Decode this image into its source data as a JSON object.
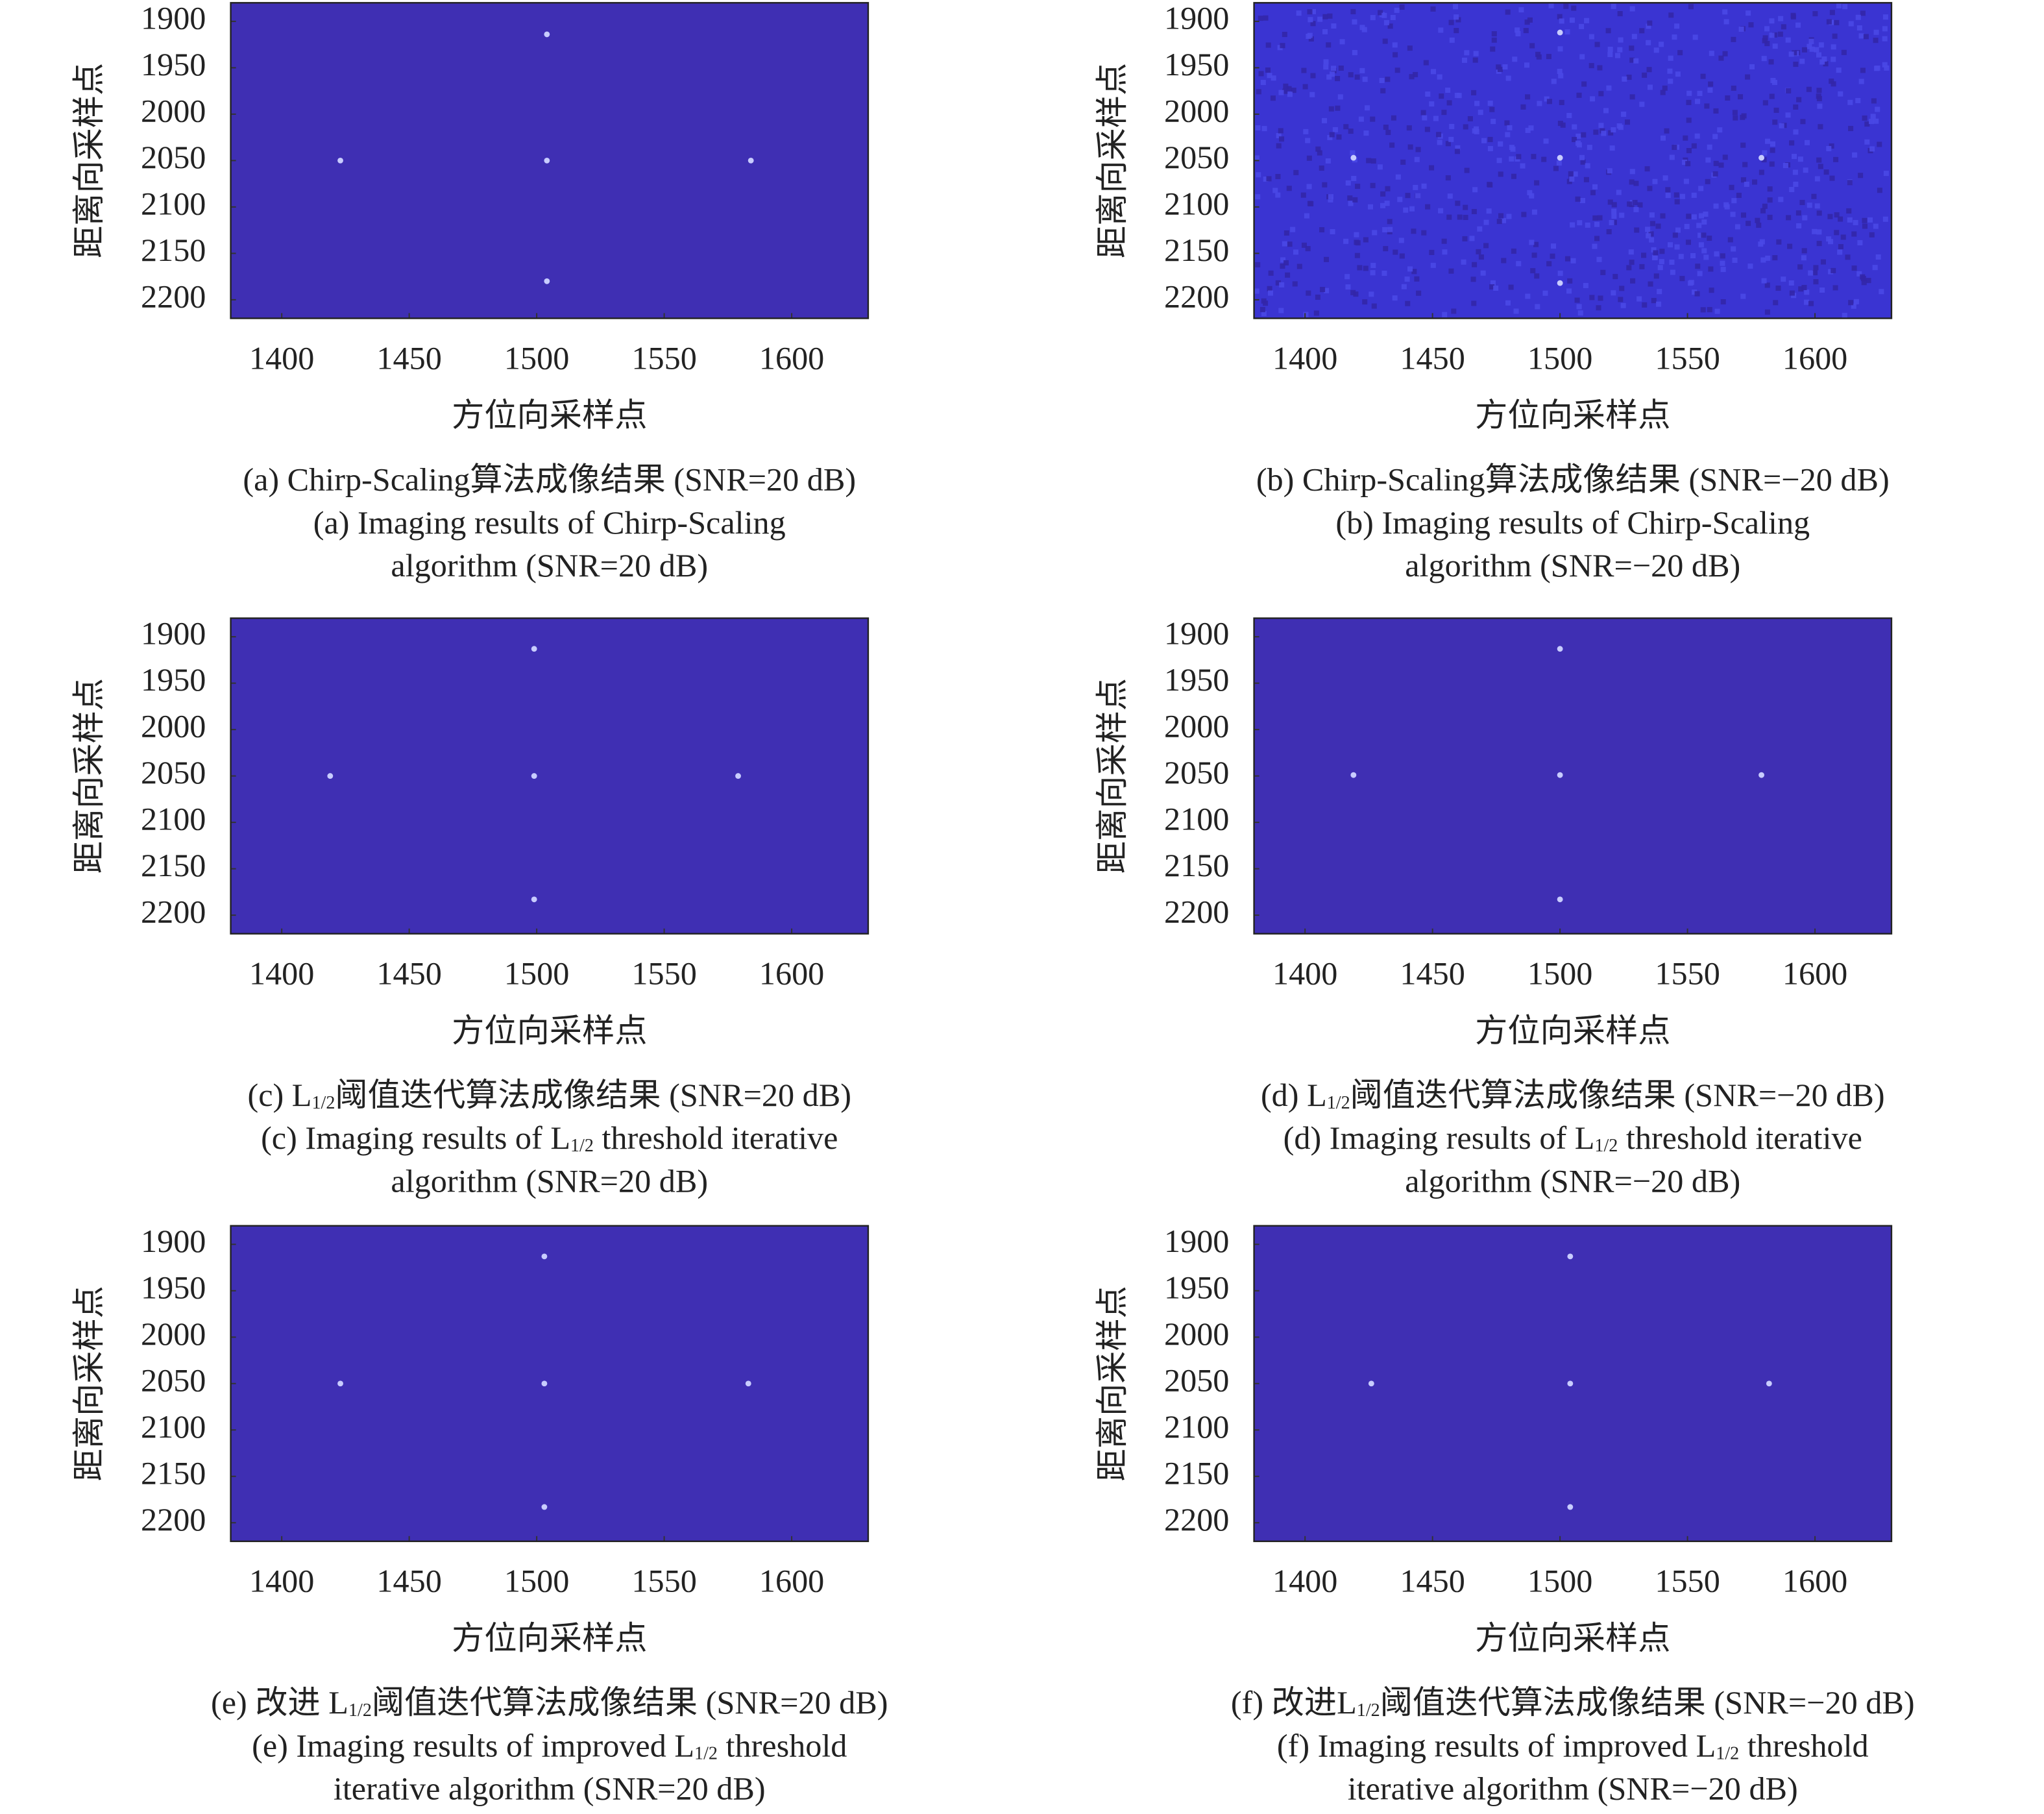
{
  "chart_data": [
    {
      "type": "scatter",
      "background": "#3f2fb3",
      "color": "#c8ccff",
      "noise": false,
      "x": [
        1504,
        1423,
        1504,
        1584,
        1504
      ],
      "y": [
        1914,
        2050,
        2050,
        2050,
        2180
      ],
      "xlim": [
        1380,
        1630
      ],
      "ylim": [
        2220,
        1880
      ],
      "xticks": [
        1400,
        1450,
        1500,
        1550,
        1600
      ],
      "yticks": [
        1900,
        1950,
        2000,
        2050,
        2100,
        2150,
        2200
      ],
      "xlabel": "方位向采样点",
      "ylabel": "距离向采样点",
      "caption": [
        [
          "(a) Chirp-Scaling算法成像结果 (SNR=20 dB)"
        ],
        [
          "(a) Imaging results of Chirp-Scaling"
        ],
        [
          "algorithm (SNR=20 dB)"
        ]
      ]
    },
    {
      "type": "scatter",
      "background": "#3a34d2",
      "color": "#c8ccff",
      "noise": true,
      "x": [
        1500,
        1419,
        1500,
        1579,
        1500
      ],
      "y": [
        1912,
        2047,
        2047,
        2047,
        2182
      ],
      "xlim": [
        1380,
        1630
      ],
      "ylim": [
        2220,
        1880
      ],
      "xticks": [
        1400,
        1450,
        1500,
        1550,
        1600
      ],
      "yticks": [
        1900,
        1950,
        2000,
        2050,
        2100,
        2150,
        2200
      ],
      "xlabel": "方位向采样点",
      "ylabel": "距离向采样点",
      "caption": [
        [
          "(b) Chirp-Scaling算法成像结果 (SNR=−20 dB)"
        ],
        [
          "(b) Imaging results of Chirp-Scaling"
        ],
        [
          "algorithm (SNR=−20 dB)"
        ]
      ]
    },
    {
      "type": "scatter",
      "background": "#3f2fb3",
      "color": "#c8ccff",
      "noise": false,
      "x": [
        1499,
        1419,
        1499,
        1579,
        1499
      ],
      "y": [
        1913,
        2050,
        2050,
        2050,
        2183
      ],
      "xlim": [
        1380,
        1630
      ],
      "ylim": [
        2220,
        1880
      ],
      "xticks": [
        1400,
        1450,
        1500,
        1550,
        1600
      ],
      "yticks": [
        1900,
        1950,
        2000,
        2050,
        2100,
        2150,
        2200
      ],
      "xlabel": "方位向采样点",
      "ylabel": "距离向采样点",
      "caption": [
        [
          "(c) L",
          "1/2",
          "阈值迭代算法成像结果 (SNR=20 dB)"
        ],
        [
          "(c) Imaging results of L",
          "1/2",
          " threshold iterative"
        ],
        [
          "algorithm (SNR=20 dB)"
        ]
      ]
    },
    {
      "type": "scatter",
      "background": "#3f2fb3",
      "color": "#c8ccff",
      "noise": false,
      "x": [
        1500,
        1419,
        1500,
        1579,
        1500
      ],
      "y": [
        1913,
        2049,
        2049,
        2049,
        2183
      ],
      "xlim": [
        1380,
        1630
      ],
      "ylim": [
        2220,
        1880
      ],
      "xticks": [
        1400,
        1450,
        1500,
        1550,
        1600
      ],
      "yticks": [
        1900,
        1950,
        2000,
        2050,
        2100,
        2150,
        2200
      ],
      "xlabel": "方位向采样点",
      "ylabel": "距离向采样点",
      "caption": [
        [
          "(d) L",
          "1/2",
          "阈值迭代算法成像结果 (SNR=−20 dB)"
        ],
        [
          "(d) Imaging results of L",
          "1/2",
          " threshold iterative"
        ],
        [
          "algorithm (SNR=−20 dB)"
        ]
      ]
    },
    {
      "type": "scatter",
      "background": "#3f2fb3",
      "color": "#c8ccff",
      "noise": false,
      "x": [
        1503,
        1423,
        1503,
        1583,
        1503
      ],
      "y": [
        1913,
        2050,
        2050,
        2050,
        2183
      ],
      "xlim": [
        1380,
        1630
      ],
      "ylim": [
        2220,
        1880
      ],
      "xticks": [
        1400,
        1450,
        1500,
        1550,
        1600
      ],
      "yticks": [
        1900,
        1950,
        2000,
        2050,
        2100,
        2150,
        2200
      ],
      "xlabel": "方位向采样点",
      "ylabel": "距离向采样点",
      "caption": [
        [
          "(e) 改进 L",
          "1/2",
          "阈值迭代算法成像结果 (SNR=20 dB)"
        ],
        [
          "(e) Imaging results of improved L",
          "1/2",
          " threshold"
        ],
        [
          "iterative algorithm (SNR=20 dB)"
        ]
      ]
    },
    {
      "type": "scatter",
      "background": "#3f2fb3",
      "color": "#c8ccff",
      "noise": false,
      "x": [
        1504,
        1426,
        1504,
        1582,
        1504
      ],
      "y": [
        1913,
        2050,
        2050,
        2050,
        2183
      ],
      "xlim": [
        1380,
        1630
      ],
      "ylim": [
        2220,
        1880
      ],
      "xticks": [
        1400,
        1450,
        1500,
        1550,
        1600
      ],
      "yticks": [
        1900,
        1950,
        2000,
        2050,
        2100,
        2150,
        2200
      ],
      "xlabel": "方位向采样点",
      "ylabel": "距离向采样点",
      "caption": [
        [
          "(f) 改进L",
          "1/2",
          "阈值迭代算法成像结果 (SNR=−20 dB)"
        ],
        [
          "(f) Imaging results of improved L",
          "1/2",
          " threshold"
        ],
        [
          "iterative algorithm (SNR=−20 dB)"
        ]
      ]
    }
  ]
}
